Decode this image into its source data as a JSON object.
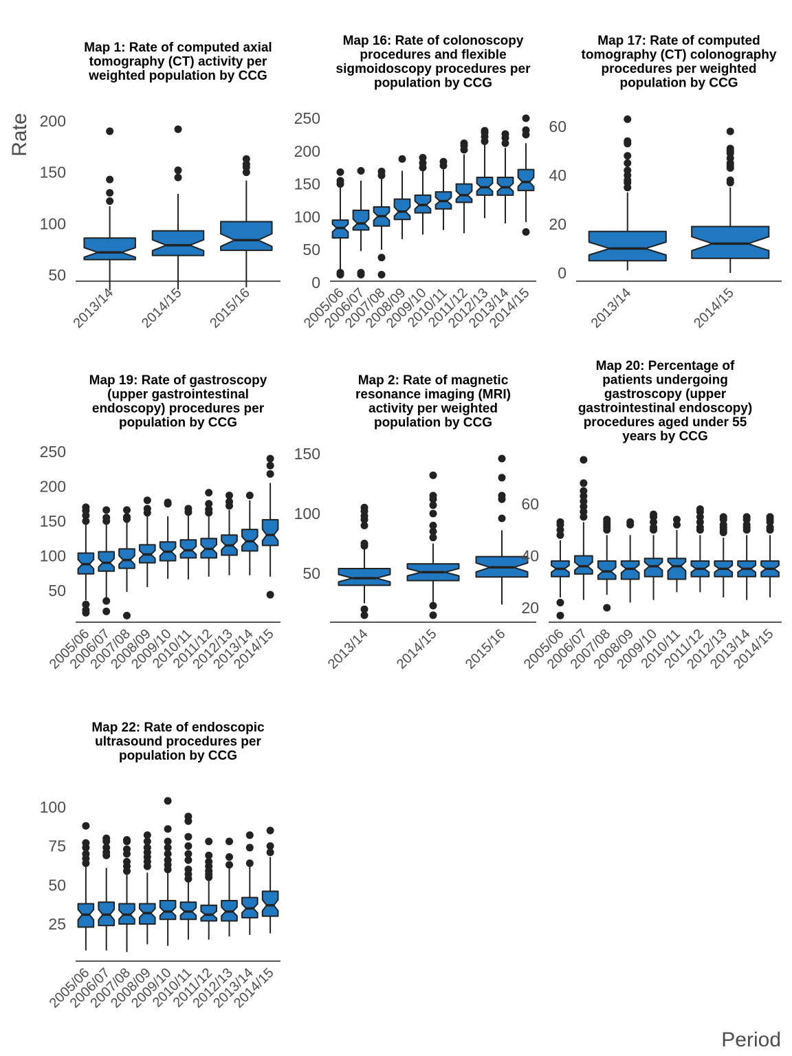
{
  "colors": {
    "box_fill": "#1f78c0",
    "outline": "#222222",
    "axis": "#555555",
    "text": "#4d4d4d"
  },
  "chart_data": {
    "type": "boxplot",
    "xlabel": "Period",
    "ylabel": "Rate",
    "notched": true,
    "grid": false,
    "panels": [
      {
        "title_lines": [
          "Map 1: Rate of computed axial",
          "tomography (CT) activity per",
          "weighted population by CCG"
        ],
        "ylim": [
          27,
          213
        ],
        "yticks": [
          50,
          100,
          150,
          200
        ],
        "categories": [
          "2013/14",
          "2014/15",
          "2015/16"
        ],
        "boxes": [
          {
            "min": 35,
            "q1": 65,
            "median": 72,
            "q3": 86,
            "max": 117,
            "outliers": [
              122,
              130,
              143,
              190
            ]
          },
          {
            "min": 36,
            "q1": 69,
            "median": 79,
            "q3": 93,
            "max": 129,
            "outliers": [
              145,
              152,
              192
            ]
          },
          {
            "min": 38,
            "q1": 74,
            "median": 84,
            "q3": 102,
            "max": 142,
            "outliers": [
              150,
              155,
              158,
              163
            ]
          }
        ]
      },
      {
        "title_lines": [
          "Map 16: Rate of colonoscopy",
          "procedures and flexible",
          "sigmoidoscopy procedures per",
          "population by CCG"
        ],
        "ylim": [
          0,
          262
        ],
        "yticks": [
          0,
          50,
          100,
          150,
          200,
          250
        ],
        "categories": [
          "2005/06",
          "2006/07",
          "2007/08",
          "2008/09",
          "2009/10",
          "2010/11",
          "2011/12",
          "2012/13",
          "2013/14",
          "2014/15"
        ],
        "boxes": [
          {
            "min": 20,
            "q1": 68,
            "median": 83,
            "q3": 95,
            "max": 145,
            "outliers": [
              12,
              15,
              150,
              155,
              168
            ]
          },
          {
            "min": 48,
            "q1": 80,
            "median": 90,
            "q3": 110,
            "max": 155,
            "outliers": [
              12,
              15,
              170
            ]
          },
          {
            "min": 50,
            "q1": 86,
            "median": 101,
            "q3": 115,
            "max": 158,
            "outliers": [
              12,
              38,
              163,
              169
            ]
          },
          {
            "min": 66,
            "q1": 96,
            "median": 108,
            "q3": 127,
            "max": 170,
            "outliers": [
              188
            ]
          },
          {
            "min": 73,
            "q1": 106,
            "median": 118,
            "q3": 133,
            "max": 170,
            "outliers": [
              175,
              182,
              190
            ]
          },
          {
            "min": 80,
            "q1": 112,
            "median": 124,
            "q3": 138,
            "max": 172,
            "outliers": [
              178,
              184
            ]
          },
          {
            "min": 75,
            "q1": 122,
            "median": 133,
            "q3": 150,
            "max": 195,
            "outliers": [
              202,
              208,
              212
            ]
          },
          {
            "min": 98,
            "q1": 133,
            "median": 145,
            "q3": 160,
            "max": 210,
            "outliers": [
              215,
              222,
              228,
              231
            ]
          },
          {
            "min": 90,
            "q1": 133,
            "median": 145,
            "q3": 160,
            "max": 205,
            "outliers": [
              212,
              220,
              226
            ]
          },
          {
            "min": 92,
            "q1": 140,
            "median": 153,
            "q3": 172,
            "max": 212,
            "outliers": [
              77,
              225,
              232,
              250
            ]
          }
        ]
      },
      {
        "title_lines": [
          "Map 17: Rate of computed",
          "tomography (CT) colonography",
          "procedures per weighted",
          "population by CCG"
        ],
        "ylim": [
          -2,
          70
        ],
        "yticks": [
          0,
          20,
          40,
          60
        ],
        "categories": [
          "2013/14",
          "2014/15"
        ],
        "boxes": [
          {
            "min": 1,
            "q1": 5,
            "median": 10,
            "q3": 17,
            "max": 33,
            "outliers": [
              35,
              37,
              38,
              40,
              42,
              45,
              48,
              53,
              54,
              63
            ]
          },
          {
            "min": 0,
            "q1": 6,
            "median": 12,
            "q3": 19,
            "max": 35,
            "outliers": [
              37,
              38,
              43,
              44,
              45,
              47,
              49,
              50,
              51,
              58
            ]
          }
        ]
      },
      {
        "title_lines": [
          "Map 19: Rate of gastroscopy",
          "(upper gastrointestinal",
          "endoscopy) procedures per",
          "population by CCG"
        ],
        "ylim": [
          5,
          262
        ],
        "yticks": [
          50,
          100,
          150,
          200,
          250
        ],
        "categories": [
          "2005/06",
          "2006/07",
          "2007/08",
          "2008/09",
          "2009/10",
          "2010/11",
          "2011/12",
          "2012/13",
          "2013/14",
          "2014/15"
        ],
        "boxes": [
          {
            "min": 36,
            "q1": 74,
            "median": 88,
            "q3": 104,
            "max": 148,
            "outliers": [
              18,
              22,
              30,
              150,
              158,
              165,
              170
            ]
          },
          {
            "min": 38,
            "q1": 78,
            "median": 90,
            "q3": 106,
            "max": 148,
            "outliers": [
              20,
              35,
              150,
              155,
              166
            ]
          },
          {
            "min": 48,
            "q1": 82,
            "median": 94,
            "q3": 110,
            "max": 150,
            "outliers": [
              14,
              153,
              156,
              166
            ]
          },
          {
            "min": 55,
            "q1": 90,
            "median": 102,
            "q3": 116,
            "max": 160,
            "outliers": [
              162,
              168,
              180
            ]
          },
          {
            "min": 67,
            "q1": 93,
            "median": 106,
            "q3": 120,
            "max": 157,
            "outliers": [
              175,
              177
            ]
          },
          {
            "min": 66,
            "q1": 97,
            "median": 108,
            "q3": 123,
            "max": 160,
            "outliers": [
              163,
              168
            ]
          },
          {
            "min": 70,
            "q1": 97,
            "median": 110,
            "q3": 125,
            "max": 160,
            "outliers": [
              162,
              167,
              175,
              191
            ]
          },
          {
            "min": 72,
            "q1": 101,
            "median": 115,
            "q3": 130,
            "max": 166,
            "outliers": [
              172,
              178,
              187
            ]
          },
          {
            "min": 72,
            "q1": 107,
            "median": 121,
            "q3": 138,
            "max": 180,
            "outliers": [
              187
            ]
          },
          {
            "min": 70,
            "q1": 115,
            "median": 130,
            "q3": 152,
            "max": 205,
            "outliers": [
              44,
              218,
              230,
              240
            ]
          }
        ]
      },
      {
        "title_lines": [
          "Map 2: Rate of magnetic",
          "resonance imaging (MRI)",
          "activity per weighted",
          "population by CCG"
        ],
        "ylim": [
          10,
          160
        ],
        "yticks": [
          50,
          100,
          150
        ],
        "categories": [
          "2013/14",
          "2014/15",
          "2015/16"
        ],
        "boxes": [
          {
            "min": 25,
            "q1": 40,
            "median": 46,
            "q3": 54,
            "max": 70,
            "outliers": [
              15,
              20,
              73,
              75,
              90,
              95,
              98,
              102,
              105
            ]
          },
          {
            "min": 25,
            "q1": 44,
            "median": 51,
            "q3": 58,
            "max": 75,
            "outliers": [
              15,
              23,
              80,
              85,
              90,
              100,
              107,
              112,
              115,
              132
            ]
          },
          {
            "min": 24,
            "q1": 47,
            "median": 55,
            "q3": 64,
            "max": 86,
            "outliers": [
              96,
              112,
              115,
              130,
              146
            ]
          }
        ]
      },
      {
        "title_lines": [
          "Map 20: Percentage of",
          "patients undergoing",
          "gastroscopy (upper",
          "gastrointestinal endoscopy)",
          "procedures aged under 55",
          "years by CCG"
        ],
        "ylim": [
          15,
          81
        ],
        "yticks": [
          20,
          40,
          60
        ],
        "categories": [
          "2005/06",
          "2006/07",
          "2007/08",
          "2008/09",
          "2009/10",
          "2010/11",
          "2011/12",
          "2012/13",
          "2013/14",
          "2014/15"
        ],
        "boxes": [
          {
            "min": 24,
            "q1": 32,
            "median": 35,
            "q3": 38,
            "max": 46,
            "outliers": [
              17,
              22,
              48,
              50,
              52,
              53
            ]
          },
          {
            "min": 23,
            "q1": 33,
            "median": 36,
            "q3": 40,
            "max": 53,
            "outliers": [
              55,
              57,
              59,
              61,
              63,
              65,
              68,
              77
            ]
          },
          {
            "min": 25,
            "q1": 31,
            "median": 34,
            "q3": 38,
            "max": 48,
            "outliers": [
              20,
              50,
              51,
              52,
              53,
              54
            ]
          },
          {
            "min": 22,
            "q1": 31,
            "median": 35,
            "q3": 38,
            "max": 48,
            "outliers": [
              52,
              53
            ]
          },
          {
            "min": 23,
            "q1": 32,
            "median": 36,
            "q3": 39,
            "max": 48,
            "outliers": [
              50,
              51,
              53,
              55,
              56
            ]
          },
          {
            "min": 26,
            "q1": 31,
            "median": 36,
            "q3": 39,
            "max": 50,
            "outliers": [
              52,
              54
            ]
          },
          {
            "min": 26,
            "q1": 32,
            "median": 35,
            "q3": 38,
            "max": 48,
            "outliers": [
              50,
              51,
              53,
              55,
              57,
              58
            ]
          },
          {
            "min": 24,
            "q1": 32,
            "median": 35,
            "q3": 38,
            "max": 47,
            "outliers": [
              49,
              50,
              51,
              52,
              54,
              55
            ]
          },
          {
            "min": 23,
            "q1": 32,
            "median": 35,
            "q3": 38,
            "max": 48,
            "outliers": [
              50,
              51,
              52,
              54,
              55
            ]
          },
          {
            "min": 24,
            "q1": 32,
            "median": 35,
            "q3": 38,
            "max": 48,
            "outliers": [
              50,
              51,
              53,
              54,
              55
            ]
          }
        ]
      },
      {
        "title_lines": [
          "Map 22: Rate of endoscopic",
          "ultrasound procedures per",
          "population by CCG"
        ],
        "ylim": [
          0,
          112
        ],
        "yticks": [
          25,
          50,
          75,
          100
        ],
        "categories": [
          "2005/06",
          "2006/07",
          "2007/08",
          "2008/09",
          "2009/10",
          "2010/11",
          "2011/12",
          "2012/13",
          "2013/14",
          "2014/15"
        ],
        "boxes": [
          {
            "min": 8,
            "q1": 23,
            "median": 31,
            "q3": 38,
            "max": 62,
            "outliers": [
              64,
              67,
              70,
              74,
              77,
              88
            ]
          },
          {
            "min": 8,
            "q1": 24,
            "median": 31,
            "q3": 39,
            "max": 61,
            "outliers": [
              69,
              71,
              74,
              78,
              80
            ]
          },
          {
            "min": 7,
            "q1": 25,
            "median": 31,
            "q3": 38,
            "max": 57,
            "outliers": [
              59,
              62,
              65,
              70,
              73,
              78,
              79
            ]
          },
          {
            "min": 12,
            "q1": 25,
            "median": 32,
            "q3": 38,
            "max": 58,
            "outliers": [
              62,
              65,
              68,
              71,
              74,
              78,
              82
            ]
          },
          {
            "min": 11,
            "q1": 28,
            "median": 33,
            "q3": 40,
            "max": 58,
            "outliers": [
              60,
              63,
              66,
              70,
              74,
              78,
              86,
              104
            ]
          },
          {
            "min": 15,
            "q1": 28,
            "median": 33,
            "q3": 39,
            "max": 58,
            "outliers": [
              54,
              57,
              60,
              66,
              70,
              75,
              81,
              91,
              94
            ]
          },
          {
            "min": 15,
            "q1": 27,
            "median": 31,
            "q3": 37,
            "max": 54,
            "outliers": [
              55,
              57,
              59,
              62,
              65,
              69,
              78
            ]
          },
          {
            "min": 17,
            "q1": 27,
            "median": 33,
            "q3": 40,
            "max": 61,
            "outliers": [
              63,
              68,
              78
            ]
          },
          {
            "min": 18,
            "q1": 29,
            "median": 35,
            "q3": 42,
            "max": 62,
            "outliers": [
              64,
              74,
              82
            ]
          },
          {
            "min": 19,
            "q1": 30,
            "median": 37,
            "q3": 46,
            "max": 68,
            "outliers": [
              71,
              75,
              85
            ]
          }
        ]
      }
    ]
  }
}
